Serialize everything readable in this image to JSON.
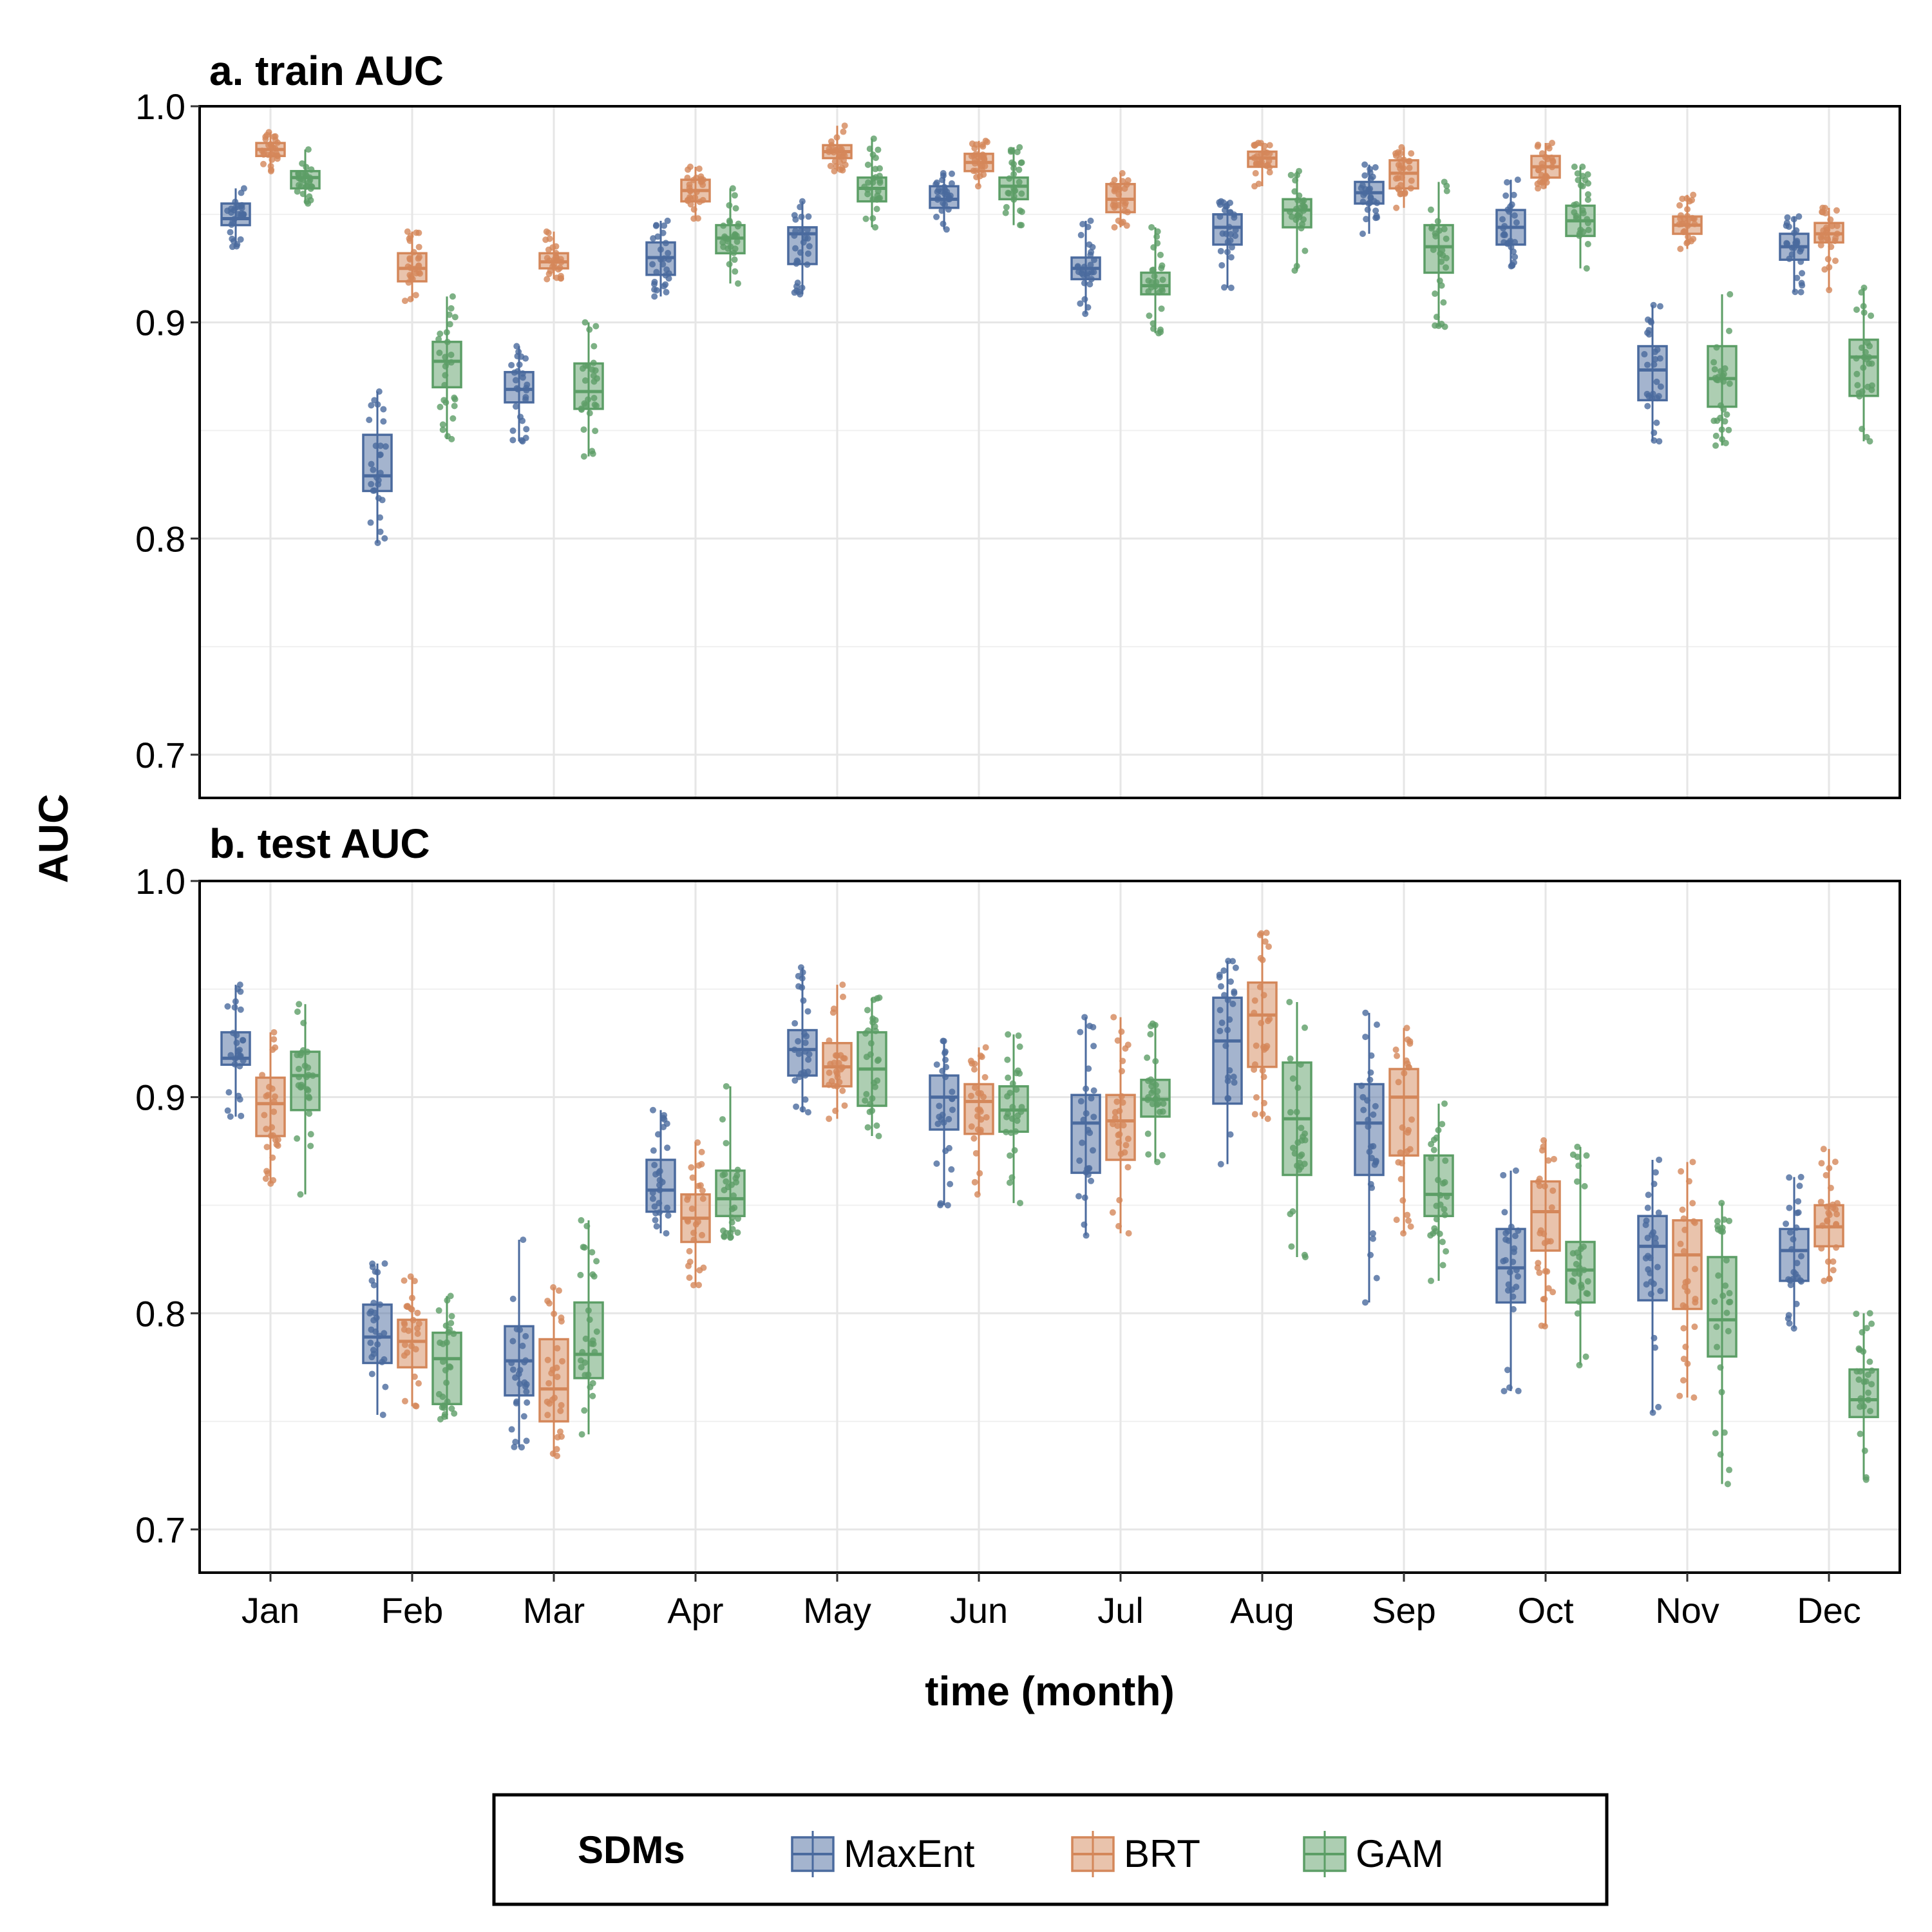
{
  "chart_data": {
    "type": "boxplot",
    "ylabel": "AUC",
    "xlabel": "time (month)",
    "categories": [
      "Jan",
      "Feb",
      "Mar",
      "Apr",
      "May",
      "Jun",
      "Jul",
      "Aug",
      "Sep",
      "Oct",
      "Nov",
      "Dec"
    ],
    "ylim": [
      0.68,
      1.0
    ],
    "yticks": [
      "0.7",
      "0.8",
      "0.9",
      "1.0"
    ],
    "legend": {
      "title": "SDMs",
      "entries": [
        {
          "name": "MaxEnt",
          "color": "#4a6a9e"
        },
        {
          "name": "BRT",
          "color": "#d4875a"
        },
        {
          "name": "GAM",
          "color": "#5c9e66"
        }
      ]
    },
    "panels": [
      {
        "title": "a. train AUC",
        "series": [
          {
            "name": "MaxEnt",
            "boxes": [
              {
                "min": 0.935,
                "q1": 0.945,
                "median": 0.948,
                "q3": 0.955,
                "max": 0.962
              },
              {
                "min": 0.798,
                "q1": 0.822,
                "median": 0.829,
                "q3": 0.848,
                "max": 0.868
              },
              {
                "min": 0.845,
                "q1": 0.863,
                "median": 0.869,
                "q3": 0.877,
                "max": 0.889
              },
              {
                "min": 0.912,
                "q1": 0.922,
                "median": 0.93,
                "q3": 0.937,
                "max": 0.947
              },
              {
                "min": 0.913,
                "q1": 0.927,
                "median": 0.941,
                "q3": 0.944,
                "max": 0.956
              },
              {
                "min": 0.943,
                "q1": 0.953,
                "median": 0.957,
                "q3": 0.963,
                "max": 0.969
              },
              {
                "min": 0.904,
                "q1": 0.92,
                "median": 0.925,
                "q3": 0.93,
                "max": 0.947
              },
              {
                "min": 0.916,
                "q1": 0.936,
                "median": 0.944,
                "q3": 0.95,
                "max": 0.956
              },
              {
                "min": 0.941,
                "q1": 0.955,
                "median": 0.96,
                "q3": 0.965,
                "max": 0.973
              },
              {
                "min": 0.926,
                "q1": 0.936,
                "median": 0.944,
                "q3": 0.952,
                "max": 0.966
              },
              {
                "min": 0.845,
                "q1": 0.864,
                "median": 0.878,
                "q3": 0.889,
                "max": 0.908
              },
              {
                "min": 0.914,
                "q1": 0.929,
                "median": 0.935,
                "q3": 0.941,
                "max": 0.949
              }
            ]
          },
          {
            "name": "BRT",
            "boxes": [
              {
                "min": 0.97,
                "q1": 0.977,
                "median": 0.98,
                "q3": 0.983,
                "max": 0.988
              },
              {
                "min": 0.91,
                "q1": 0.919,
                "median": 0.925,
                "q3": 0.932,
                "max": 0.942
              },
              {
                "min": 0.92,
                "q1": 0.925,
                "median": 0.928,
                "q3": 0.932,
                "max": 0.942
              },
              {
                "min": 0.948,
                "q1": 0.956,
                "median": 0.961,
                "q3": 0.966,
                "max": 0.972
              },
              {
                "min": 0.97,
                "q1": 0.976,
                "median": 0.979,
                "q3": 0.982,
                "max": 0.991
              },
              {
                "min": 0.963,
                "q1": 0.97,
                "median": 0.974,
                "q3": 0.978,
                "max": 0.984
              },
              {
                "min": 0.944,
                "q1": 0.951,
                "median": 0.957,
                "q3": 0.964,
                "max": 0.969
              },
              {
                "min": 0.963,
                "q1": 0.972,
                "median": 0.976,
                "q3": 0.979,
                "max": 0.983
              },
              {
                "min": 0.953,
                "q1": 0.962,
                "median": 0.969,
                "q3": 0.975,
                "max": 0.981
              },
              {
                "min": 0.962,
                "q1": 0.967,
                "median": 0.972,
                "q3": 0.977,
                "max": 0.983
              },
              {
                "min": 0.934,
                "q1": 0.941,
                "median": 0.945,
                "q3": 0.949,
                "max": 0.959
              },
              {
                "min": 0.915,
                "q1": 0.937,
                "median": 0.941,
                "q3": 0.946,
                "max": 0.953
              }
            ]
          },
          {
            "name": "GAM",
            "boxes": [
              {
                "min": 0.955,
                "q1": 0.962,
                "median": 0.967,
                "q3": 0.97,
                "max": 0.98
              },
              {
                "min": 0.846,
                "q1": 0.87,
                "median": 0.882,
                "q3": 0.891,
                "max": 0.912
              },
              {
                "min": 0.838,
                "q1": 0.86,
                "median": 0.868,
                "q3": 0.881,
                "max": 0.9
              },
              {
                "min": 0.918,
                "q1": 0.932,
                "median": 0.939,
                "q3": 0.945,
                "max": 0.962
              },
              {
                "min": 0.944,
                "q1": 0.956,
                "median": 0.962,
                "q3": 0.967,
                "max": 0.985
              },
              {
                "min": 0.945,
                "q1": 0.957,
                "median": 0.963,
                "q3": 0.967,
                "max": 0.981
              },
              {
                "min": 0.895,
                "q1": 0.913,
                "median": 0.917,
                "q3": 0.923,
                "max": 0.944
              },
              {
                "min": 0.924,
                "q1": 0.944,
                "median": 0.952,
                "q3": 0.957,
                "max": 0.97
              },
              {
                "min": 0.898,
                "q1": 0.923,
                "median": 0.935,
                "q3": 0.945,
                "max": 0.965
              },
              {
                "min": 0.925,
                "q1": 0.94,
                "median": 0.947,
                "q3": 0.954,
                "max": 0.972
              },
              {
                "min": 0.843,
                "q1": 0.861,
                "median": 0.874,
                "q3": 0.889,
                "max": 0.913
              },
              {
                "min": 0.845,
                "q1": 0.866,
                "median": 0.884,
                "q3": 0.892,
                "max": 0.916
              }
            ]
          }
        ]
      },
      {
        "title": "b. test AUC",
        "series": [
          {
            "name": "MaxEnt",
            "boxes": [
              {
                "min": 0.891,
                "q1": 0.915,
                "median": 0.918,
                "q3": 0.93,
                "max": 0.952
              },
              {
                "min": 0.753,
                "q1": 0.777,
                "median": 0.789,
                "q3": 0.804,
                "max": 0.823
              },
              {
                "min": 0.738,
                "q1": 0.762,
                "median": 0.778,
                "q3": 0.794,
                "max": 0.834
              },
              {
                "min": 0.837,
                "q1": 0.847,
                "median": 0.857,
                "q3": 0.871,
                "max": 0.894
              },
              {
                "min": 0.893,
                "q1": 0.91,
                "median": 0.922,
                "q3": 0.931,
                "max": 0.96
              },
              {
                "min": 0.85,
                "q1": 0.885,
                "median": 0.9,
                "q3": 0.91,
                "max": 0.926
              },
              {
                "min": 0.836,
                "q1": 0.865,
                "median": 0.888,
                "q3": 0.901,
                "max": 0.937
              },
              {
                "min": 0.869,
                "q1": 0.897,
                "median": 0.926,
                "q3": 0.946,
                "max": 0.963
              },
              {
                "min": 0.805,
                "q1": 0.864,
                "median": 0.888,
                "q3": 0.906,
                "max": 0.939
              },
              {
                "min": 0.764,
                "q1": 0.805,
                "median": 0.821,
                "q3": 0.839,
                "max": 0.866
              },
              {
                "min": 0.754,
                "q1": 0.806,
                "median": 0.831,
                "q3": 0.845,
                "max": 0.871
              },
              {
                "min": 0.793,
                "q1": 0.815,
                "median": 0.829,
                "q3": 0.839,
                "max": 0.863
              }
            ]
          },
          {
            "name": "BRT",
            "boxes": [
              {
                "min": 0.86,
                "q1": 0.882,
                "median": 0.897,
                "q3": 0.909,
                "max": 0.93
              },
              {
                "min": 0.757,
                "q1": 0.775,
                "median": 0.787,
                "q3": 0.797,
                "max": 0.817
              },
              {
                "min": 0.734,
                "q1": 0.75,
                "median": 0.765,
                "q3": 0.788,
                "max": 0.812
              },
              {
                "min": 0.813,
                "q1": 0.833,
                "median": 0.844,
                "q3": 0.855,
                "max": 0.879
              },
              {
                "min": 0.89,
                "q1": 0.905,
                "median": 0.914,
                "q3": 0.925,
                "max": 0.952
              },
              {
                "min": 0.855,
                "q1": 0.883,
                "median": 0.898,
                "q3": 0.906,
                "max": 0.923
              },
              {
                "min": 0.837,
                "q1": 0.871,
                "median": 0.889,
                "q3": 0.901,
                "max": 0.937
              },
              {
                "min": 0.89,
                "q1": 0.914,
                "median": 0.938,
                "q3": 0.953,
                "max": 0.976
              },
              {
                "min": 0.837,
                "q1": 0.873,
                "median": 0.9,
                "q3": 0.913,
                "max": 0.932
              },
              {
                "min": 0.794,
                "q1": 0.829,
                "median": 0.847,
                "q3": 0.861,
                "max": 0.88
              },
              {
                "min": 0.761,
                "q1": 0.802,
                "median": 0.827,
                "q3": 0.843,
                "max": 0.87
              },
              {
                "min": 0.815,
                "q1": 0.831,
                "median": 0.84,
                "q3": 0.85,
                "max": 0.876
              }
            ]
          },
          {
            "name": "GAM",
            "boxes": [
              {
                "min": 0.855,
                "q1": 0.894,
                "median": 0.91,
                "q3": 0.921,
                "max": 0.943
              },
              {
                "min": 0.751,
                "q1": 0.758,
                "median": 0.779,
                "q3": 0.791,
                "max": 0.808
              },
              {
                "min": 0.744,
                "q1": 0.77,
                "median": 0.781,
                "q3": 0.805,
                "max": 0.843
              },
              {
                "min": 0.835,
                "q1": 0.845,
                "median": 0.853,
                "q3": 0.866,
                "max": 0.905
              },
              {
                "min": 0.882,
                "q1": 0.896,
                "median": 0.913,
                "q3": 0.93,
                "max": 0.946
              },
              {
                "min": 0.851,
                "q1": 0.884,
                "median": 0.894,
                "q3": 0.905,
                "max": 0.929
              },
              {
                "min": 0.87,
                "q1": 0.891,
                "median": 0.899,
                "q3": 0.908,
                "max": 0.934
              },
              {
                "min": 0.826,
                "q1": 0.864,
                "median": 0.89,
                "q3": 0.916,
                "max": 0.944
              },
              {
                "min": 0.815,
                "q1": 0.845,
                "median": 0.855,
                "q3": 0.873,
                "max": 0.897
              },
              {
                "min": 0.776,
                "q1": 0.805,
                "median": 0.82,
                "q3": 0.833,
                "max": 0.877
              },
              {
                "min": 0.721,
                "q1": 0.78,
                "median": 0.797,
                "q3": 0.826,
                "max": 0.851
              },
              {
                "min": 0.723,
                "q1": 0.752,
                "median": 0.76,
                "q3": 0.774,
                "max": 0.8
              }
            ]
          }
        ]
      }
    ]
  }
}
